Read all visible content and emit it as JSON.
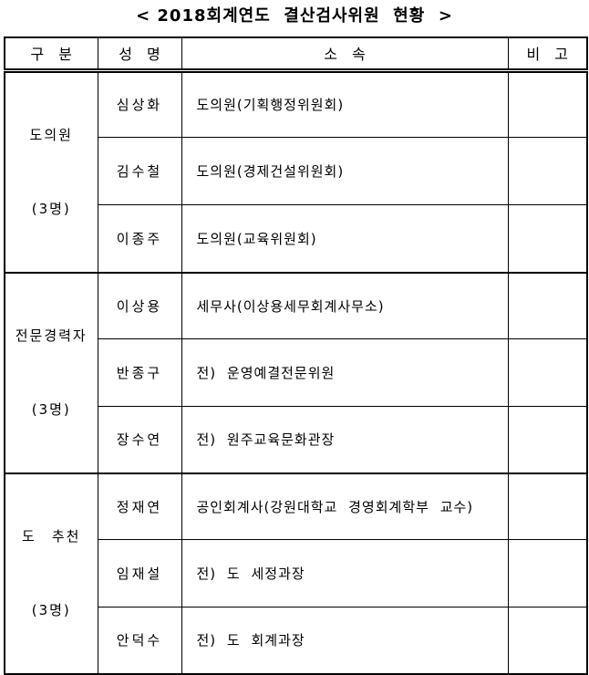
{
  "title": "< 2018회계연도  결산검사위원  현황  >",
  "table": {
    "headers": {
      "category": "구　분",
      "name": "성　명",
      "affiliation": "소　속",
      "note": "비　고"
    },
    "groups": [
      {
        "label_line1": "도의원",
        "label_line2": "(3명)",
        "members": [
          {
            "name": "심상화",
            "affiliation": "도의원(기획행정위원회)",
            "note": ""
          },
          {
            "name": "김수철",
            "affiliation": "도의원(경제건설위원회)",
            "note": ""
          },
          {
            "name": "이종주",
            "affiliation": "도의원(교육위원회)",
            "note": ""
          }
        ]
      },
      {
        "label_line1": "전문경력자",
        "label_line2": "(3명)",
        "members": [
          {
            "name": "이상용",
            "affiliation": "세무사(이상용세무회계사무소)",
            "note": ""
          },
          {
            "name": "반종구",
            "affiliation": "전) 운영예결전문위원",
            "note": ""
          },
          {
            "name": "장수연",
            "affiliation": "전) 원주교육문화관장",
            "note": ""
          }
        ]
      },
      {
        "label_line1": "도　추천",
        "label_line2": "(3명)",
        "members": [
          {
            "name": "정재연",
            "affiliation": "공인회계사(강원대학교 경영회계학부 교수)",
            "note": ""
          },
          {
            "name": "임재설",
            "affiliation": "전) 도 세정과장",
            "note": ""
          },
          {
            "name": "안덕수",
            "affiliation": "전) 도 회계과장",
            "note": ""
          }
        ]
      }
    ]
  }
}
